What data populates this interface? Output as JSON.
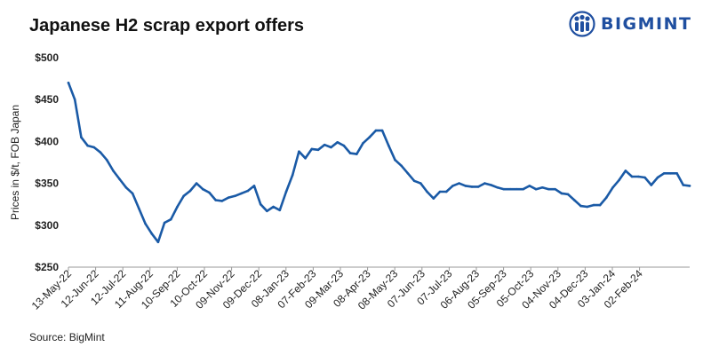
{
  "brand": {
    "name": "BIGMINT",
    "color": "#1f4fa0"
  },
  "source": "Source: BigMint",
  "chart_data": {
    "type": "line",
    "title": "Japanese H2 scrap export offers",
    "xlabel": "",
    "ylabel": "Prices in $/t, FOB Japan",
    "ylim": [
      250,
      500
    ],
    "yticks": [
      250,
      300,
      350,
      400,
      450,
      500
    ],
    "ytick_labels": [
      "$250",
      "$300",
      "$350",
      "$400",
      "$450",
      "$500"
    ],
    "x_tick_labels": [
      "13-May-22",
      "12-Jun-22",
      "12-Jul-22",
      "11-Aug-22",
      "10-Sep-22",
      "10-Oct-22",
      "09-Nov-22",
      "09-Dec-22",
      "08-Jan-23",
      "07-Feb-23",
      "09-Mar-23",
      "08-Apr-23",
      "08-May-23",
      "07-Jun-23",
      "07-Jul-23",
      "06-Aug-23",
      "05-Sep-23",
      "05-Oct-23",
      "04-Nov-23",
      "04-Dec-23",
      "03-Jan-24",
      "02-Feb-24"
    ],
    "grid": false,
    "legend": "none",
    "line_color": "#1a5aa6",
    "series": [
      {
        "values": [
          470,
          450,
          405,
          395,
          393,
          387,
          378,
          365,
          355,
          345,
          338,
          320,
          302,
          290,
          280,
          303,
          307,
          322,
          335,
          341,
          350,
          343,
          339,
          330,
          329,
          333,
          335,
          338,
          341,
          347,
          325,
          317,
          322,
          318,
          340,
          360,
          388,
          380,
          391,
          390,
          396,
          393,
          399,
          395,
          386,
          385,
          398,
          405,
          413,
          413,
          395,
          378,
          371,
          362,
          353,
          350,
          340,
          332,
          340,
          340,
          347,
          350,
          347,
          346,
          346,
          350,
          348,
          345,
          343,
          343,
          343,
          343,
          347,
          343,
          345,
          343,
          343,
          338,
          337,
          330,
          323,
          322,
          324,
          324,
          333,
          345,
          354,
          365,
          358,
          358,
          357,
          348,
          357,
          362,
          362,
          362,
          348,
          347
        ]
      }
    ]
  }
}
